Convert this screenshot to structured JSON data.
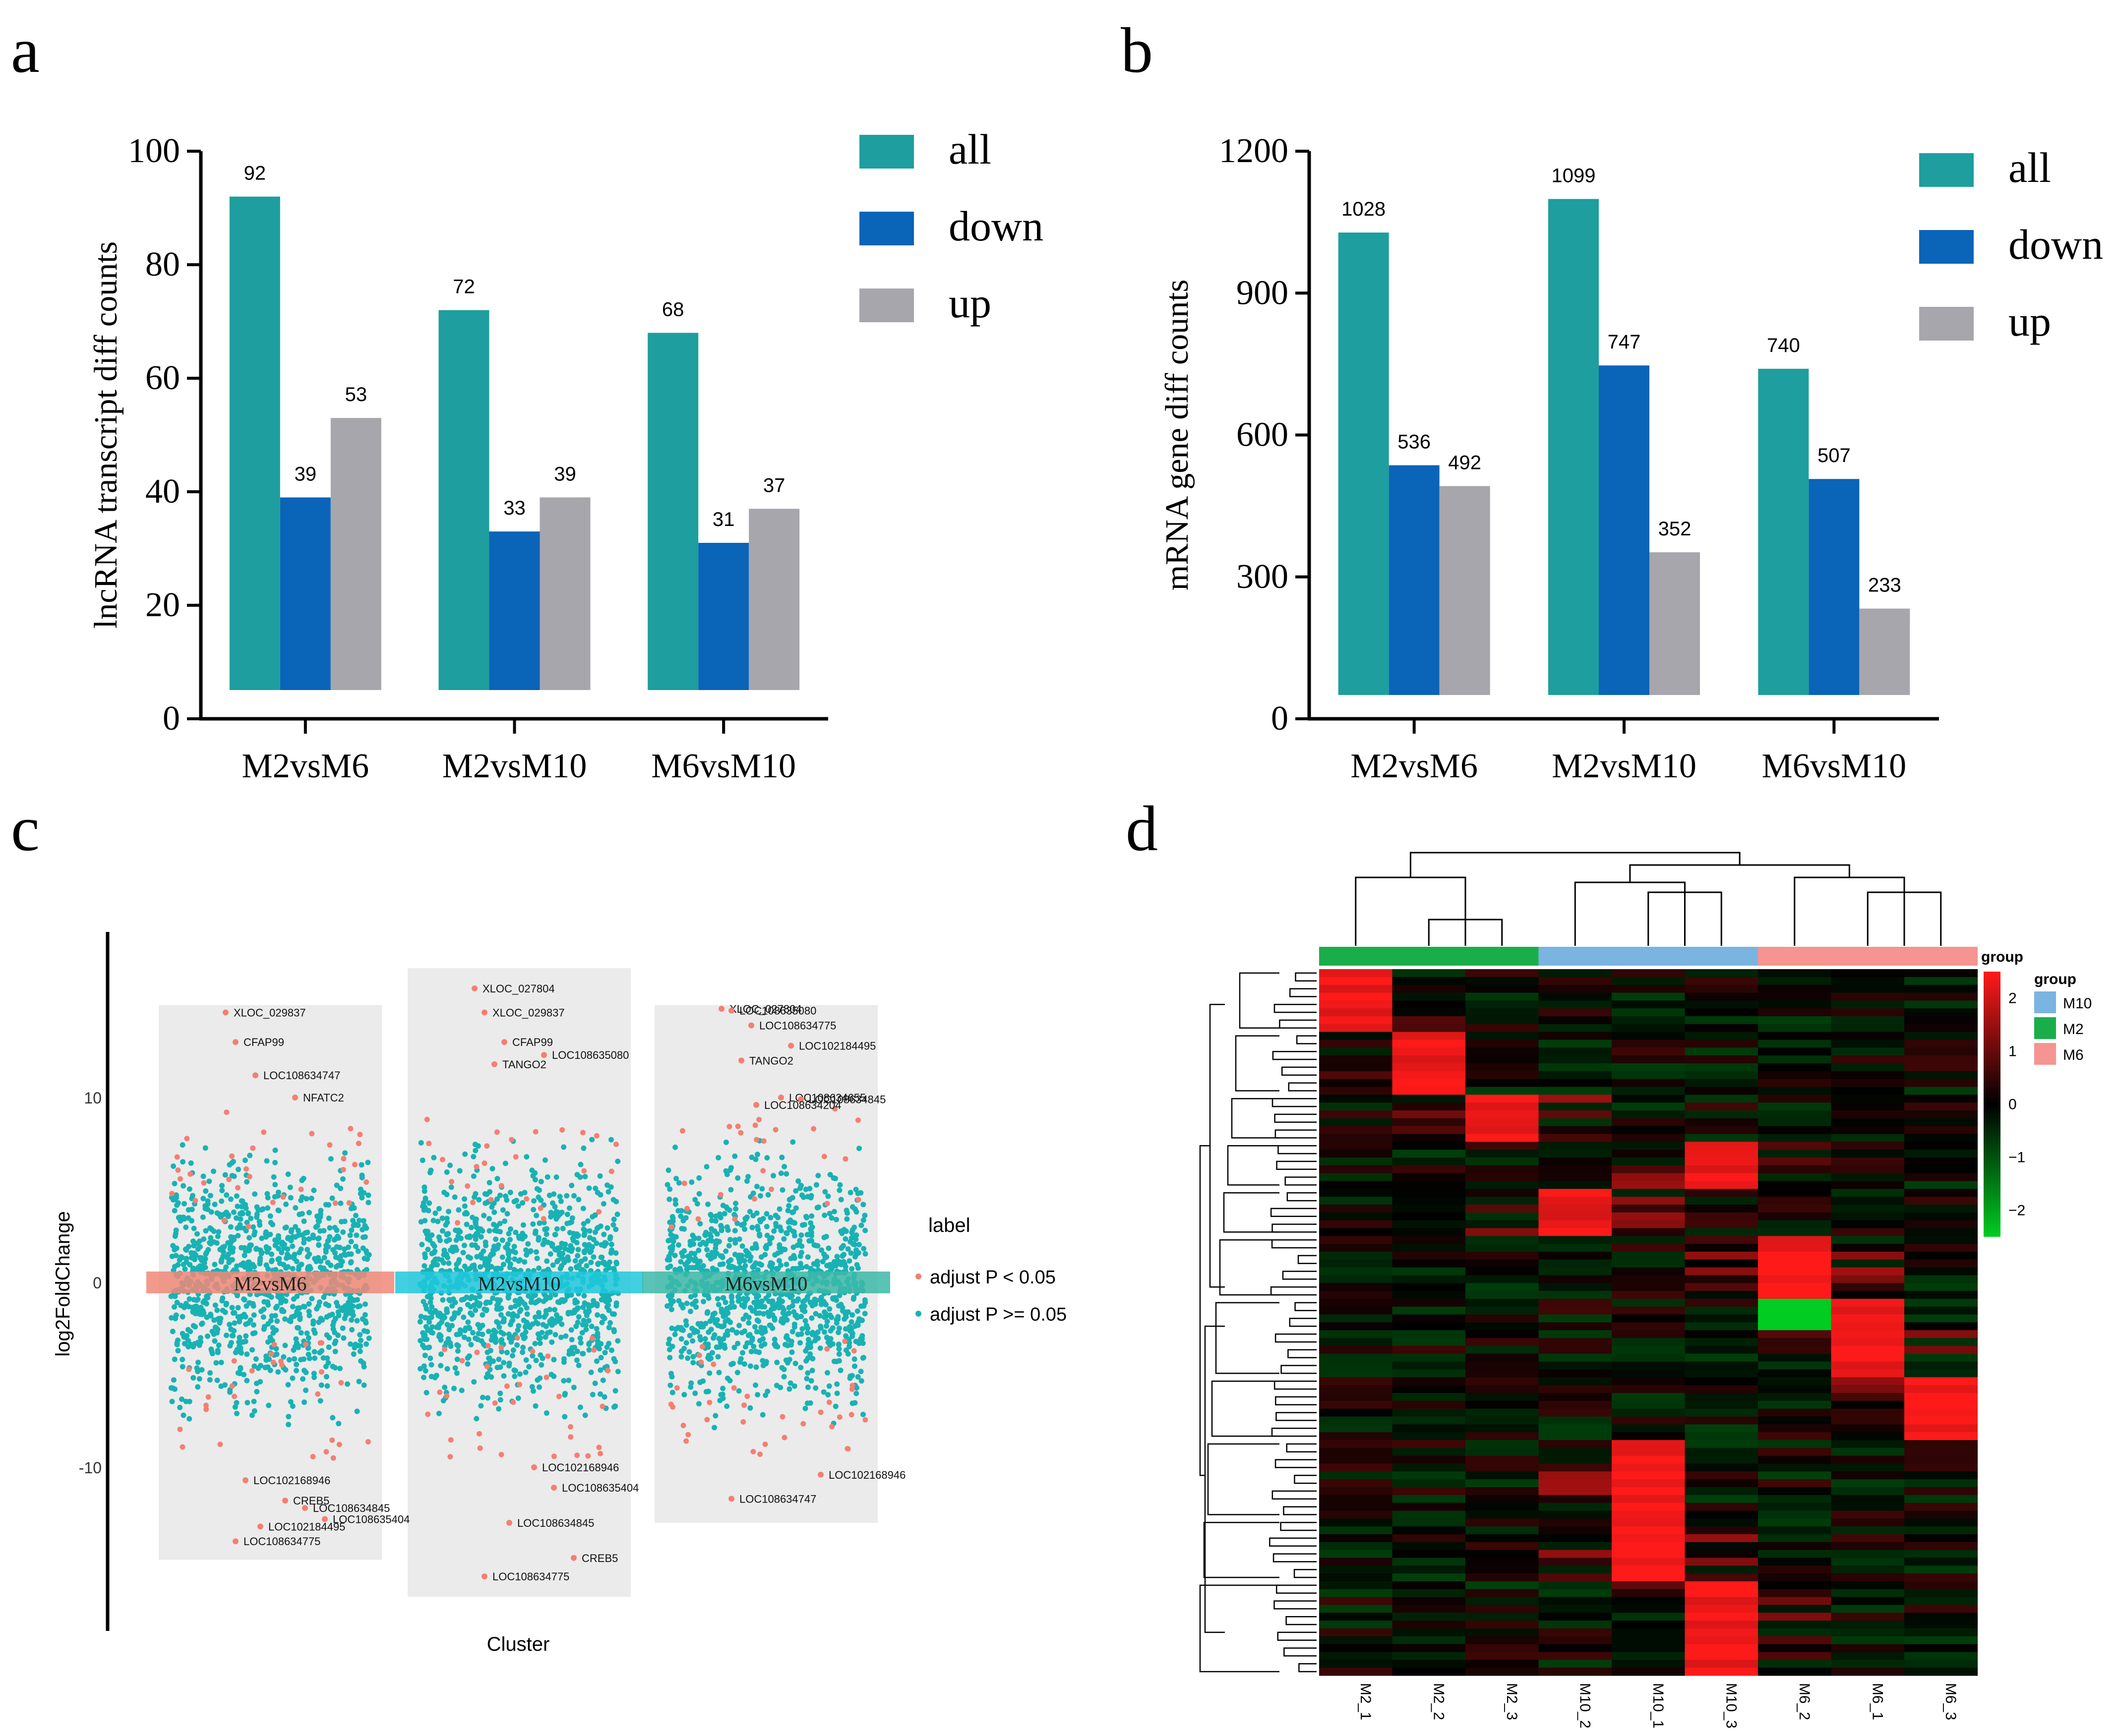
{
  "panels": {
    "a": {
      "letter": "a"
    },
    "b": {
      "letter": "b"
    },
    "c": {
      "letter": "c"
    },
    "d": {
      "letter": "d"
    }
  },
  "chart_data": [
    {
      "id": "a",
      "type": "bar",
      "title": "",
      "xlabel": "",
      "ylabel": "lncRNA transcript diff counts",
      "ylim": [
        0,
        100
      ],
      "yticks": [
        0,
        20,
        40,
        60,
        80,
        100
      ],
      "categories": [
        "M2vsM6",
        "M2vsM10",
        "M6vsM10"
      ],
      "series": [
        {
          "name": "all",
          "color": "#1e9e9e",
          "values": [
            92,
            72,
            68
          ]
        },
        {
          "name": "down",
          "color": "#0a64b8",
          "values": [
            39,
            33,
            31
          ]
        },
        {
          "name": "up",
          "color": "#a6a6ac",
          "values": [
            53,
            39,
            37
          ]
        }
      ],
      "legend": "top-right"
    },
    {
      "id": "b",
      "type": "bar",
      "title": "",
      "xlabel": "",
      "ylabel": "mRNA gene diff counts",
      "ylim": [
        0,
        1200
      ],
      "yticks": [
        0,
        300,
        600,
        900,
        1200
      ],
      "categories": [
        "M2vsM6",
        "M2vsM10",
        "M6vsM10"
      ],
      "series": [
        {
          "name": "all",
          "color": "#1e9e9e",
          "values": [
            1028,
            1099,
            740
          ]
        },
        {
          "name": "down",
          "color": "#0a64b8",
          "values": [
            536,
            747,
            507
          ]
        },
        {
          "name": "up",
          "color": "#a6a6ac",
          "values": [
            492,
            352,
            233
          ]
        }
      ],
      "legend": "top-right"
    },
    {
      "id": "c",
      "type": "scatter",
      "title": "",
      "xlabel": "Cluster",
      "ylabel": "log2FoldChange",
      "ylim": [
        -18,
        19
      ],
      "yticks": [
        -10,
        0,
        10
      ],
      "clusters": [
        "M2vsM6",
        "M2vsM10",
        "M6vsM10"
      ],
      "cluster_colors": [
        "#f08878",
        "#1ec8dc",
        "#3cb8a8"
      ],
      "legend_title": "label",
      "legend_entries": [
        {
          "name": "adjust P < 0.05",
          "color": "#f47f72"
        },
        {
          "name": "adjust P >= 0.05",
          "color": "#18b2b4"
        }
      ],
      "cluster_ranges": [
        [
          -15,
          15
        ],
        [
          -17,
          17
        ],
        [
          -13,
          15
        ]
      ],
      "labeled_genes": [
        {
          "cluster": 0,
          "name": "XLOC_029837",
          "y": 14.6
        },
        {
          "cluster": 0,
          "name": "CFAP99",
          "y": 13.0
        },
        {
          "cluster": 0,
          "name": "LOC108634747",
          "y": 11.2
        },
        {
          "cluster": 0,
          "name": "NFATC2",
          "y": 10.0
        },
        {
          "cluster": 0,
          "name": "LOC102168946",
          "y": -10.7
        },
        {
          "cluster": 0,
          "name": "CREB5",
          "y": -11.8
        },
        {
          "cluster": 0,
          "name": "LOC108634845",
          "y": -12.2
        },
        {
          "cluster": 0,
          "name": "LOC102184495",
          "y": -13.2
        },
        {
          "cluster": 0,
          "name": "LOC108635404",
          "y": -12.8
        },
        {
          "cluster": 0,
          "name": "LOC108634775",
          "y": -14.0
        },
        {
          "cluster": 1,
          "name": "XLOC_027804",
          "y": 15.9
        },
        {
          "cluster": 1,
          "name": "XLOC_029837",
          "y": 14.6
        },
        {
          "cluster": 1,
          "name": "CFAP99",
          "y": 13.0
        },
        {
          "cluster": 1,
          "name": "LOC108635080",
          "y": 12.3
        },
        {
          "cluster": 1,
          "name": "TANGO2",
          "y": 11.8
        },
        {
          "cluster": 1,
          "name": "LOC102168946",
          "y": -10.0
        },
        {
          "cluster": 1,
          "name": "LOC108635404",
          "y": -11.1
        },
        {
          "cluster": 1,
          "name": "LOC108634845",
          "y": -13.0
        },
        {
          "cluster": 1,
          "name": "CREB5",
          "y": -14.9
        },
        {
          "cluster": 1,
          "name": "LOC108634775",
          "y": -15.9
        },
        {
          "cluster": 2,
          "name": "XLOC_027804",
          "y": 14.8
        },
        {
          "cluster": 2,
          "name": "LOC108635080",
          "y": 14.7
        },
        {
          "cluster": 2,
          "name": "LOC108634775",
          "y": 13.9
        },
        {
          "cluster": 2,
          "name": "LOC102184495",
          "y": 12.8
        },
        {
          "cluster": 2,
          "name": "TANGO2",
          "y": 12.0
        },
        {
          "cluster": 2,
          "name": "LOC108634655",
          "y": 10.0
        },
        {
          "cluster": 2,
          "name": "LOC108634845",
          "y": 9.9
        },
        {
          "cluster": 2,
          "name": "LOC108634204",
          "y": 9.6
        },
        {
          "cluster": 2,
          "name": "LOC102168946",
          "y": -10.4
        },
        {
          "cluster": 2,
          "name": "LOC108634747",
          "y": -11.7
        }
      ]
    },
    {
      "id": "d",
      "type": "heatmap",
      "title": "",
      "columns": [
        "M2_1",
        "M2_2",
        "M2_3",
        "M10_2",
        "M10_1",
        "M10_3",
        "M6_2",
        "M6_1",
        "M6_3"
      ],
      "column_groups": [
        "M2",
        "M2",
        "M2",
        "M10",
        "M10",
        "M10",
        "M6",
        "M6",
        "M6"
      ],
      "group_legend_title": "group",
      "group_bar_title": "group",
      "groups": [
        {
          "name": "M10",
          "color": "#7ab4e0"
        },
        {
          "name": "M2",
          "color": "#1aae4a"
        },
        {
          "name": "M6",
          "color": "#f59490"
        }
      ],
      "color_scale": {
        "min": -2.5,
        "max": 2.5,
        "low": "#00cc22",
        "mid": "#000000",
        "high": "#ff1a1a"
      },
      "colorbar_ticks": [
        2,
        1,
        0,
        -1,
        -2
      ],
      "row_count": 90
    }
  ]
}
